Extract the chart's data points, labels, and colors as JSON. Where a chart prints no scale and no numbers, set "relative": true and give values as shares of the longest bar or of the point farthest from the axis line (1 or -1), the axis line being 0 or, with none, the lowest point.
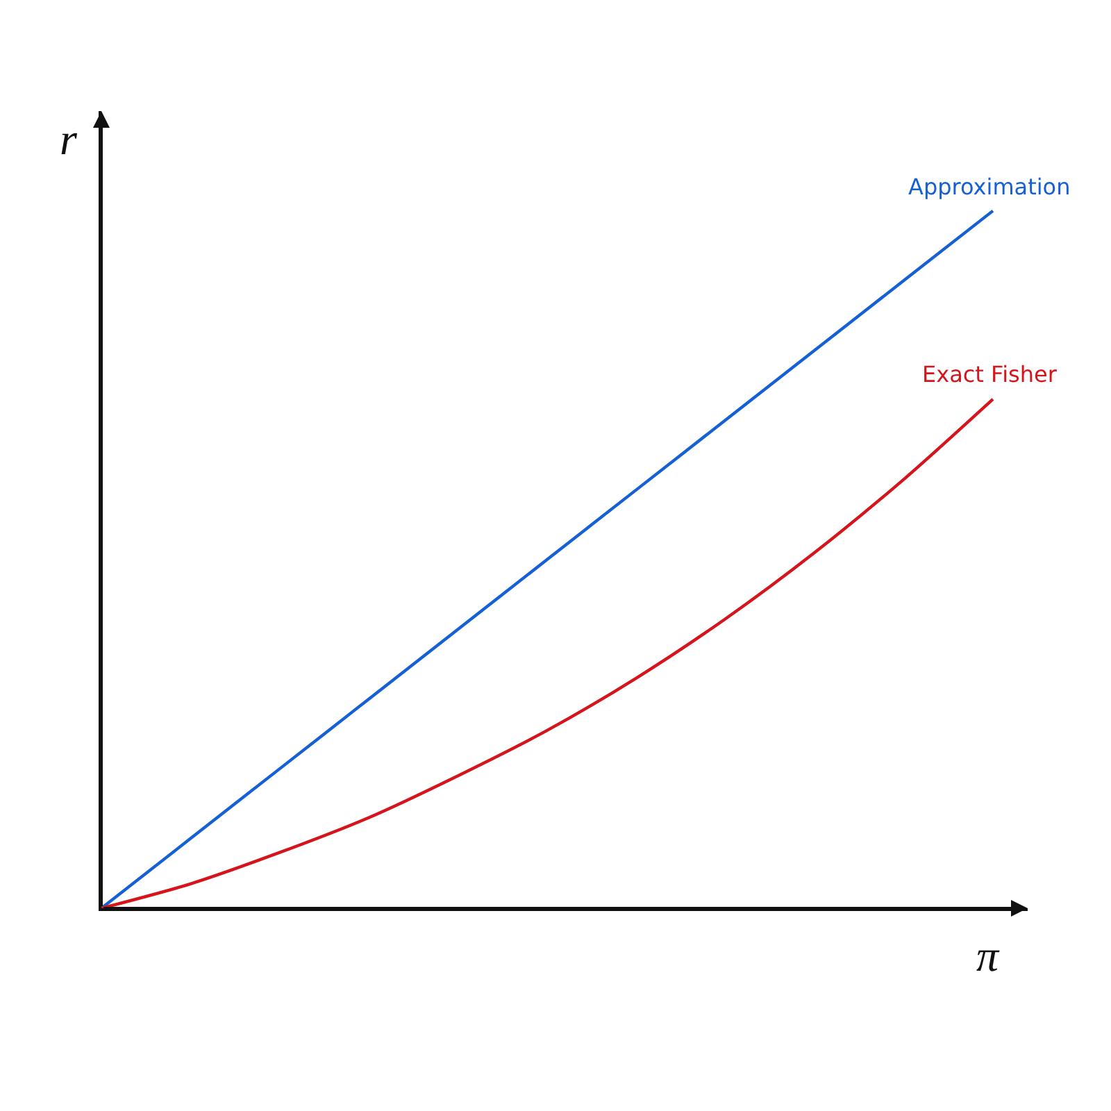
{
  "chart_data": {
    "type": "line",
    "xlabel": "π",
    "ylabel": "r",
    "categories": [
      null,
      null,
      null,
      null,
      null,
      null,
      null,
      null,
      null,
      null,
      null
    ],
    "relative": true,
    "legend": false,
    "line_style": "solid",
    "series": [
      {
        "name": "Approximation",
        "color": "#1560d4",
        "values": [
          0,
          0.1,
          0.2,
          0.3,
          0.4,
          0.5,
          0.6,
          0.7,
          0.8,
          0.9,
          1.0
        ]
      },
      {
        "name": "Exact Fisher",
        "color": "#d6141c",
        "values": [
          0,
          0.035,
          0.08,
          0.13,
          0.19,
          0.255,
          0.33,
          0.415,
          0.51,
          0.615,
          0.73
        ]
      }
    ]
  }
}
